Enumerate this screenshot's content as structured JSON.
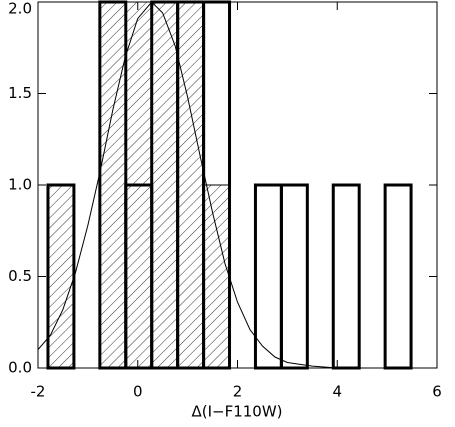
{
  "chart_data": {
    "type": "histogram",
    "xlabel": "Δ(I−F110W)",
    "bins": [
      -1.8,
      -1.28,
      -0.76,
      -0.24,
      0.28,
      0.8,
      1.32,
      1.84,
      2.36,
      2.88,
      3.4,
      3.92,
      4.44,
      4.96,
      5.48
    ],
    "histograms": [
      {
        "fill": "hatch",
        "counts": [
          1,
          0,
          2,
          2,
          2,
          2,
          1,
          0,
          0,
          0,
          0,
          0,
          0,
          0
        ]
      },
      {
        "fill": "none",
        "counts": [
          1,
          0,
          2,
          1,
          2,
          2,
          2,
          0,
          1,
          1,
          0,
          1,
          0,
          1
        ]
      }
    ],
    "curve": {
      "x": [
        -2,
        -1.75,
        -1.5,
        -1.25,
        -1,
        -0.75,
        -0.5,
        -0.25,
        0,
        0.28,
        0.5,
        0.75,
        1,
        1.25,
        1.5,
        1.75,
        2,
        2.25,
        2.5,
        2.75,
        3,
        3.5,
        4
      ],
      "y": [
        0.1,
        0.18,
        0.32,
        0.52,
        0.78,
        1.08,
        1.41,
        1.7,
        1.91,
        2.0,
        1.94,
        1.76,
        1.48,
        1.16,
        0.85,
        0.57,
        0.36,
        0.21,
        0.12,
        0.06,
        0.03,
        0.01,
        0
      ]
    },
    "color": "#000000",
    "xlim": [
      -2,
      6
    ],
    "xticks": [
      -2,
      0,
      2,
      4,
      6
    ],
    "ylim": [
      0,
      2
    ],
    "yticks": [
      {
        "value": 0,
        "label": "0.0"
      },
      {
        "value": 0.5,
        "label": "0.5"
      },
      {
        "value": 1,
        "label": "1.0"
      },
      {
        "value": 1.5,
        "label": "1.5"
      },
      {
        "value": 2,
        "label": "2.0"
      }
    ]
  }
}
